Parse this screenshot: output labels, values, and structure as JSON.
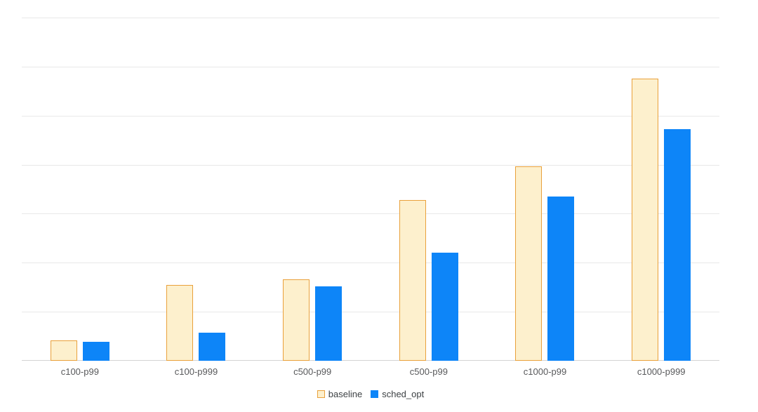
{
  "page": {
    "background": "#ffffff"
  },
  "chart_data": {
    "type": "bar",
    "title": "",
    "categories": [
      "c100-p99",
      "c100-p999",
      "c500-p99",
      "c500-p99",
      "c1000-p99",
      "c1000-p999"
    ],
    "series": [
      {
        "name": "baseline",
        "values": [
          42,
          155,
          166,
          328,
          397,
          575
        ],
        "fill": "#fdf0cd",
        "border": "#e9a13b"
      },
      {
        "name": "sched_opt",
        "values": [
          38,
          57,
          152,
          221,
          335,
          472
        ],
        "fill": "#0d85f8",
        "border": "#0d85f8"
      }
    ],
    "xlabel": "",
    "ylabel": "",
    "ylim": [
      0,
      700
    ],
    "gridline_step": 100,
    "grid": true,
    "y_axis_labels_visible": false,
    "legend_position": "bottom",
    "colors": {
      "gridline": "#e8e8e8",
      "axis_line": "#d4d4d4",
      "category_label": "#58595b",
      "legend_text": "#3c4043",
      "background": "#ffffff"
    }
  }
}
